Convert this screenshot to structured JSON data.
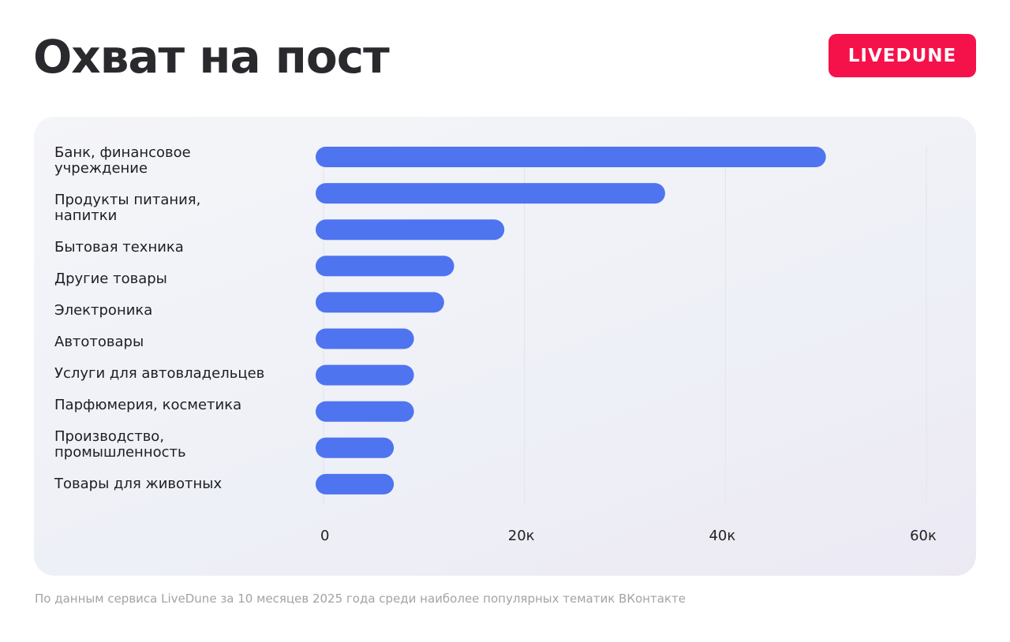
{
  "header": {
    "title": "Охват на пост",
    "logo": "LIVEDUNE"
  },
  "chart_data": {
    "type": "bar",
    "orientation": "horizontal",
    "categories": [
      "Банк, финансовое учреждение",
      "Продукты питания, напитки",
      "Бытовая техника",
      "Другие товары",
      "Электроника",
      "Автотовары",
      "Услуги для автовладельцев",
      "Парфюмерия, косметика",
      "Производство, промышленность",
      "Товары для животных"
    ],
    "values": [
      50000,
      34000,
      18000,
      13000,
      12000,
      9000,
      9000,
      9000,
      7000,
      7000
    ],
    "color": "#4f74f0",
    "xlim": [
      0,
      60000
    ],
    "xticks": [
      0,
      {
        "value": 20000,
        "label": "20к"
      },
      {
        "value": 40000,
        "label": "40к"
      },
      {
        "value": 60000,
        "label": "60к"
      }
    ],
    "grid": true
  },
  "footnote": "По данным сервиса LiveDune за 10 месяцев 2025 года среди наиболее популярных тематик ВКонтакте"
}
